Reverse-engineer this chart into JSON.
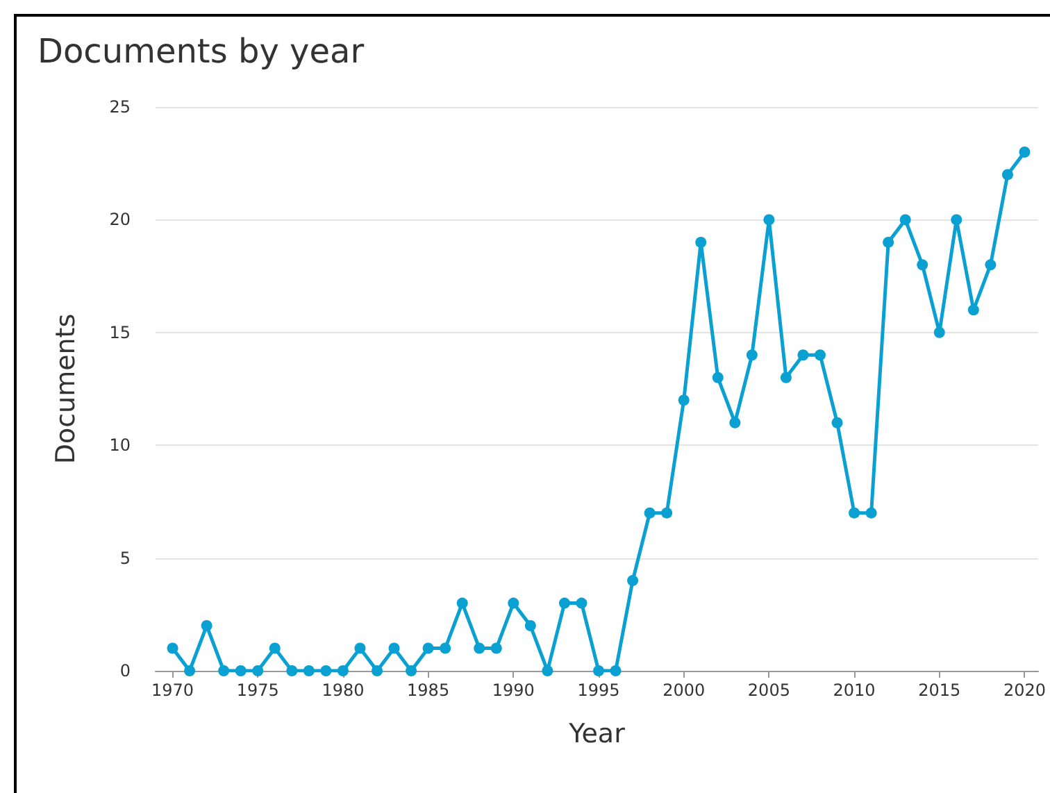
{
  "chart_data": {
    "type": "line",
    "title": "Documents by year",
    "xlabel": "Year",
    "ylabel": "Documents",
    "x": [
      1970,
      1971,
      1972,
      1973,
      1974,
      1975,
      1976,
      1977,
      1978,
      1979,
      1980,
      1981,
      1982,
      1983,
      1984,
      1985,
      1986,
      1987,
      1988,
      1989,
      1990,
      1991,
      1992,
      1993,
      1994,
      1995,
      1996,
      1997,
      1998,
      1999,
      2000,
      2001,
      2002,
      2003,
      2004,
      2005,
      2006,
      2007,
      2008,
      2009,
      2010,
      2011,
      2012,
      2013,
      2014,
      2015,
      2016,
      2017,
      2018,
      2019,
      2020
    ],
    "series": [
      {
        "color": "#0aa0d2",
        "values": [
          1,
          0,
          2,
          0,
          0,
          0,
          1,
          0,
          0,
          0,
          0,
          1,
          0,
          1,
          0,
          1,
          1,
          3,
          1,
          1,
          3,
          2,
          0,
          3,
          3,
          0,
          0,
          4,
          7,
          7,
          12,
          19,
          13,
          11,
          14,
          20,
          13,
          14,
          14,
          11,
          7,
          7,
          19,
          20,
          18,
          15,
          20,
          16,
          18,
          22,
          23
        ]
      }
    ],
    "xlim": [
      1969,
      2020.8
    ],
    "xticks": [
      1970,
      1975,
      1980,
      1985,
      1990,
      1995,
      2000,
      2005,
      2010,
      2015,
      2020
    ],
    "ylim": [
      0,
      25
    ],
    "yticks": [
      0,
      5,
      10,
      15,
      20,
      25
    ],
    "grid": "y",
    "marker": "circle",
    "line_style": "solid"
  }
}
